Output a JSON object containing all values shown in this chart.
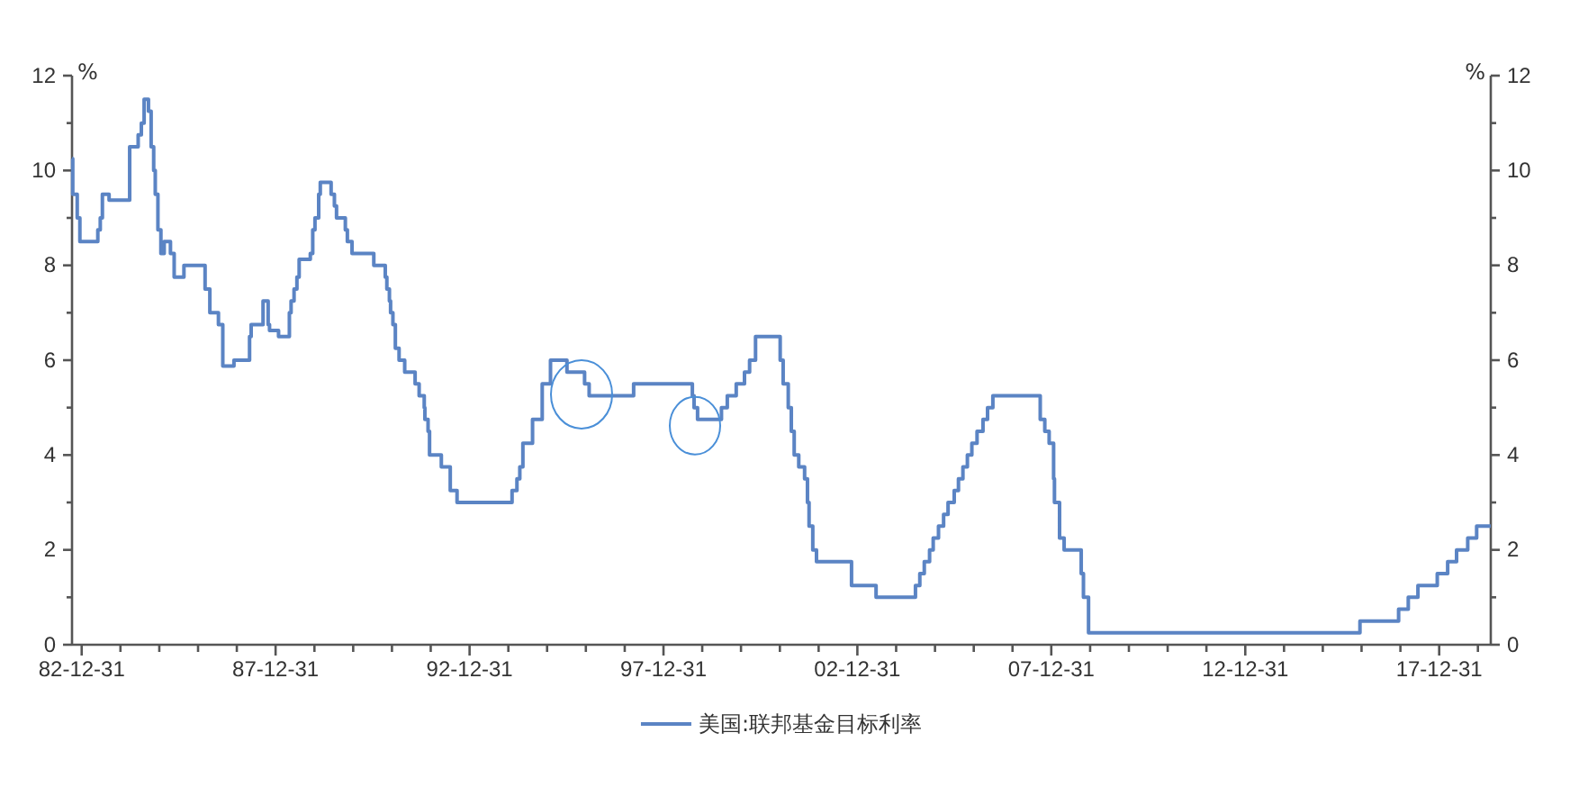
{
  "chart_data": {
    "type": "step",
    "ylabel": "%",
    "y2label": "%",
    "xlim": [
      "1982-10-01",
      "2019-05-01"
    ],
    "xticks": [
      {
        "value": "1982-12-31",
        "label": "82-12-31"
      },
      {
        "value": "1983-12-31",
        "label": null
      },
      {
        "value": "1984-12-31",
        "label": null
      },
      {
        "value": "1985-12-31",
        "label": null
      },
      {
        "value": "1986-12-31",
        "label": null
      },
      {
        "value": "1987-12-31",
        "label": "87-12-31"
      },
      {
        "value": "1988-12-31",
        "label": null
      },
      {
        "value": "1989-12-31",
        "label": null
      },
      {
        "value": "1990-12-31",
        "label": null
      },
      {
        "value": "1991-12-31",
        "label": null
      },
      {
        "value": "1992-12-31",
        "label": "92-12-31"
      },
      {
        "value": "1993-12-31",
        "label": null
      },
      {
        "value": "1994-12-31",
        "label": null
      },
      {
        "value": "1995-12-31",
        "label": null
      },
      {
        "value": "1996-12-31",
        "label": null
      },
      {
        "value": "1997-12-31",
        "label": "97-12-31"
      },
      {
        "value": "1998-12-31",
        "label": null
      },
      {
        "value": "1999-12-31",
        "label": null
      },
      {
        "value": "2000-12-31",
        "label": null
      },
      {
        "value": "2001-12-31",
        "label": null
      },
      {
        "value": "2002-12-31",
        "label": "02-12-31"
      },
      {
        "value": "2003-12-31",
        "label": null
      },
      {
        "value": "2004-12-31",
        "label": null
      },
      {
        "value": "2005-12-31",
        "label": null
      },
      {
        "value": "2006-12-31",
        "label": null
      },
      {
        "value": "2007-12-31",
        "label": "07-12-31"
      },
      {
        "value": "2008-12-31",
        "label": null
      },
      {
        "value": "2009-12-31",
        "label": null
      },
      {
        "value": "2010-12-31",
        "label": null
      },
      {
        "value": "2011-12-31",
        "label": null
      },
      {
        "value": "2012-12-31",
        "label": "12-12-31"
      },
      {
        "value": "2013-12-31",
        "label": null
      },
      {
        "value": "2014-12-31",
        "label": null
      },
      {
        "value": "2015-12-31",
        "label": null
      },
      {
        "value": "2016-12-31",
        "label": null
      },
      {
        "value": "2017-12-31",
        "label": "17-12-31"
      },
      {
        "value": "2018-12-31",
        "label": null
      }
    ],
    "ylim": [
      0,
      12
    ],
    "yticks": [
      0,
      {
        "value": 1,
        "label": null
      },
      2,
      {
        "value": 3,
        "label": null
      },
      4,
      {
        "value": 5,
        "label": null
      },
      6,
      {
        "value": 7,
        "label": null
      },
      8,
      {
        "value": 9,
        "label": null
      },
      10,
      {
        "value": 11,
        "label": null
      },
      12
    ],
    "y2lim": [
      0,
      12
    ],
    "y2ticks": [
      0,
      {
        "value": 1,
        "label": null
      },
      2,
      {
        "value": 3,
        "label": null
      },
      4,
      {
        "value": 5,
        "label": null
      },
      6,
      {
        "value": 7,
        "label": null
      },
      8,
      {
        "value": 9,
        "label": null
      },
      10,
      {
        "value": 11,
        "label": null
      },
      12
    ],
    "legend": "bottom",
    "grid": false,
    "marker": "none",
    "line_style": "solid",
    "series": [
      {
        "name": "美国:联邦基金目标利率",
        "color": "#5b84c4",
        "x": [
          "1982-10-01",
          "1982-10-08",
          "1982-11-19",
          "1982-12-14",
          "1983-06-01",
          "1983-06-24",
          "1983-07-14",
          "1983-09-15",
          "1984-03-27",
          "1984-05-25",
          "1984-06-15",
          "1984-07-15",
          "1984-08-10",
          "1984-09-20",
          "1984-10-15",
          "1984-11-08",
          "1984-11-23",
          "1984-12-18",
          "1985-01-15",
          "1985-02-15",
          "1985-04-15",
          "1985-05-20",
          "1985-08-20",
          "1986-03-07",
          "1986-04-21",
          "1986-07-11",
          "1986-08-21",
          "1986-12-04",
          "1987-04-30",
          "1987-05-15",
          "1987-09-04",
          "1987-10-22",
          "1987-11-04",
          "1988-01-28",
          "1988-03-29",
          "1988-05-09",
          "1988-05-25",
          "1988-06-22",
          "1988-07-19",
          "1988-08-09",
          "1988-11-22",
          "1988-12-15",
          "1989-01-05",
          "1989-02-09",
          "1989-02-24",
          "1989-06-06",
          "1989-07-07",
          "1989-07-27",
          "1989-10-18",
          "1989-11-06",
          "1989-12-20",
          "1990-07-13",
          "1990-10-29",
          "1990-11-13",
          "1990-12-07",
          "1990-12-18",
          "1991-01-09",
          "1991-02-01",
          "1991-03-08",
          "1991-04-30",
          "1991-08-06",
          "1991-09-13",
          "1991-10-31",
          "1991-11-06",
          "1991-12-06",
          "1991-12-20",
          "1992-04-09",
          "1992-07-02",
          "1992-09-04",
          "1994-02-04",
          "1994-03-22",
          "1994-04-18",
          "1994-05-17",
          "1994-08-16",
          "1994-11-15",
          "1995-02-01",
          "1995-07-06",
          "1995-12-19",
          "1996-01-31",
          "1997-03-25",
          "1998-09-29",
          "1998-10-15",
          "1998-11-17",
          "1999-06-30",
          "1999-08-24",
          "1999-11-16",
          "2000-02-02",
          "2000-03-21",
          "2000-05-16",
          "2001-01-03",
          "2001-01-31",
          "2001-03-20",
          "2001-04-18",
          "2001-05-15",
          "2001-06-27",
          "2001-08-21",
          "2001-09-17",
          "2001-10-02",
          "2001-11-06",
          "2001-12-11",
          "2002-11-06",
          "2003-06-25",
          "2004-06-30",
          "2004-08-10",
          "2004-09-21",
          "2004-11-10",
          "2004-12-14",
          "2005-02-02",
          "2005-03-22",
          "2005-05-03",
          "2005-06-30",
          "2005-08-09",
          "2005-09-20",
          "2005-11-01",
          "2005-12-13",
          "2006-01-31",
          "2006-03-28",
          "2006-05-10",
          "2006-06-29",
          "2007-09-18",
          "2007-10-31",
          "2007-12-11",
          "2008-01-22",
          "2008-01-30",
          "2008-03-18",
          "2008-04-30",
          "2008-10-08",
          "2008-10-29",
          "2008-12-16",
          "2015-12-16",
          "2016-12-14",
          "2017-03-15",
          "2017-06-14",
          "2017-12-13",
          "2018-03-21",
          "2018-06-13",
          "2018-09-26",
          "2018-12-19",
          "2019-05-01"
        ],
        "values": [
          10.25,
          9.5,
          9.0,
          8.5,
          8.75,
          9.0,
          9.5,
          9.375,
          10.5,
          10.5,
          10.75,
          11.0,
          11.5,
          11.25,
          10.5,
          10.0,
          9.5,
          8.75,
          8.25,
          8.5,
          8.25,
          7.75,
          8.0,
          7.5,
          7.0,
          6.75,
          5.875,
          6.0,
          6.5,
          6.75,
          7.25,
          6.75,
          6.625,
          6.5,
          6.5,
          7.0,
          7.25,
          7.5,
          7.75,
          8.125,
          8.25,
          8.75,
          9.0,
          9.5,
          9.75,
          9.5,
          9.25,
          9.0,
          8.75,
          8.5,
          8.25,
          8.0,
          7.75,
          7.5,
          7.25,
          7.0,
          6.75,
          6.25,
          6.0,
          5.75,
          5.5,
          5.25,
          5.0,
          4.75,
          4.5,
          4.0,
          3.75,
          3.25,
          3.0,
          3.25,
          3.5,
          3.75,
          4.25,
          4.75,
          5.5,
          6.0,
          5.75,
          5.5,
          5.25,
          5.5,
          5.25,
          5.0,
          4.75,
          5.0,
          5.25,
          5.5,
          5.75,
          6.0,
          6.5,
          6.0,
          5.5,
          5.0,
          4.5,
          4.0,
          3.75,
          3.5,
          3.0,
          2.5,
          2.0,
          1.75,
          1.25,
          1.0,
          1.25,
          1.5,
          1.75,
          2.0,
          2.25,
          2.5,
          2.75,
          3.0,
          3.25,
          3.5,
          3.75,
          4.0,
          4.25,
          4.5,
          4.75,
          5.0,
          5.25,
          4.75,
          4.5,
          4.25,
          3.5,
          3.0,
          2.25,
          2.0,
          1.5,
          1.0,
          0.25,
          0.5,
          0.75,
          1.0,
          1.25,
          1.5,
          1.75,
          2.0,
          2.25,
          2.5,
          2.5
        ]
      }
    ]
  }
}
